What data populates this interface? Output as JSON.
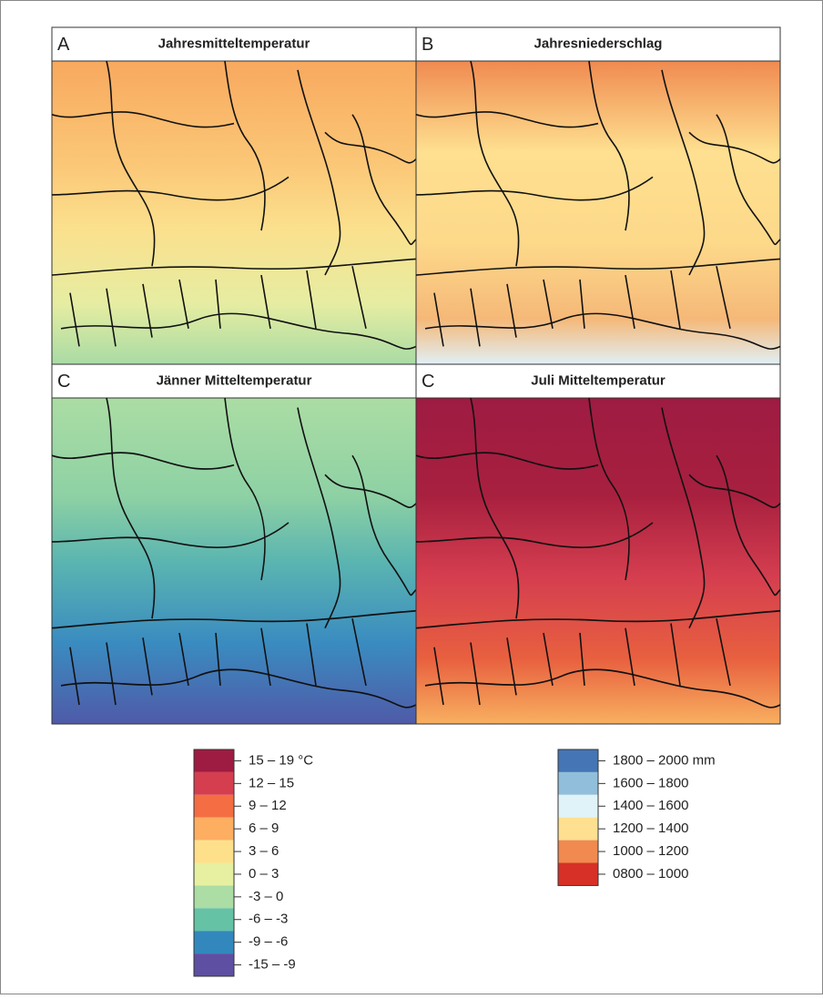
{
  "panels": [
    {
      "letter": "A",
      "title": "Jahresmitteltemperatur"
    },
    {
      "letter": "B",
      "title": "Jahresniederschlag"
    },
    {
      "letter": "C",
      "title": "Jänner Mitteltemperatur"
    },
    {
      "letter": "C",
      "title": "Juli Mitteltemperatur"
    }
  ],
  "temperature_legend": {
    "items": [
      {
        "label": "15 – 19 °C",
        "color": "#9e1b42"
      },
      {
        "label": "12 – 15",
        "color": "#d53e4f"
      },
      {
        "label": "9 – 12",
        "color": "#f46d43"
      },
      {
        "label": "6 – 9",
        "color": "#fdae61"
      },
      {
        "label": "3 – 6",
        "color": "#fee08b"
      },
      {
        "label": "0 – 3",
        "color": "#e6f0a0"
      },
      {
        "label": "-3 – 0",
        "color": "#abdda4"
      },
      {
        "label": "-6 – -3",
        "color": "#66c2a5"
      },
      {
        "label": "-9 – -6",
        "color": "#3288bd"
      },
      {
        "label": "-15 – -9",
        "color": "#5e4fa2"
      }
    ]
  },
  "precipitation_legend": {
    "items": [
      {
        "label": "1800 – 2000 mm",
        "color": "#4575b4"
      },
      {
        "label": "1600 – 1800",
        "color": "#91bfdb"
      },
      {
        "label": "1400 – 1600",
        "color": "#e0f3f8"
      },
      {
        "label": "1200 – 1400",
        "color": "#fee090"
      },
      {
        "label": "1000 – 1200",
        "color": "#f08a50"
      },
      {
        "label": "0800 – 1000",
        "color": "#d73027"
      }
    ]
  }
}
